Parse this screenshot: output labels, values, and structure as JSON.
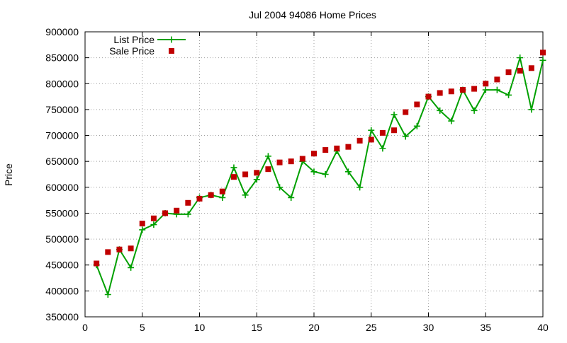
{
  "chart_data": {
    "type": "line",
    "title": "Jul 2004 94086 Home Prices",
    "xlabel": "",
    "ylabel": "Price",
    "xlim": [
      0,
      40
    ],
    "ylim": [
      350000,
      900000
    ],
    "x_ticks": [
      0,
      5,
      10,
      15,
      20,
      25,
      30,
      35,
      40
    ],
    "y_ticks": [
      350000,
      400000,
      450000,
      500000,
      550000,
      600000,
      650000,
      700000,
      750000,
      800000,
      850000,
      900000
    ],
    "grid": true,
    "legend_position": "top-left",
    "series": [
      {
        "name": "List Price",
        "kind": "line-with-plus-markers",
        "color": "#00a000",
        "x": [
          1,
          2,
          3,
          4,
          5,
          6,
          7,
          8,
          9,
          10,
          11,
          12,
          13,
          14,
          15,
          16,
          17,
          18,
          19,
          20,
          21,
          22,
          23,
          24,
          25,
          26,
          27,
          28,
          29,
          30,
          31,
          32,
          33,
          34,
          35,
          36,
          37,
          38,
          39,
          40
        ],
        "values": [
          450000,
          393000,
          480000,
          445000,
          518000,
          528000,
          550000,
          548000,
          548000,
          580000,
          585000,
          580000,
          638000,
          585000,
          615000,
          660000,
          600000,
          580000,
          650000,
          630000,
          625000,
          670000,
          630000,
          600000,
          710000,
          675000,
          740000,
          698000,
          718000,
          775000,
          748000,
          728000,
          788000,
          748000,
          788000,
          788000,
          778000,
          850000,
          750000,
          845000
        ]
      },
      {
        "name": "Sale Price",
        "kind": "square-markers",
        "color": "#c00000",
        "x": [
          1,
          2,
          3,
          4,
          5,
          6,
          7,
          8,
          9,
          10,
          11,
          12,
          13,
          14,
          15,
          16,
          17,
          18,
          19,
          20,
          21,
          22,
          23,
          24,
          25,
          26,
          27,
          28,
          29,
          30,
          31,
          32,
          33,
          34,
          35,
          36,
          37,
          38,
          39,
          40
        ],
        "values": [
          453000,
          475000,
          480000,
          482000,
          530000,
          540000,
          550000,
          555000,
          570000,
          578000,
          585000,
          592000,
          620000,
          625000,
          628000,
          635000,
          648000,
          650000,
          655000,
          665000,
          672000,
          675000,
          678000,
          690000,
          692000,
          705000,
          710000,
          745000,
          760000,
          775000,
          782000,
          785000,
          788000,
          790000,
          800000,
          808000,
          822000,
          825000,
          830000,
          860000
        ]
      }
    ]
  }
}
